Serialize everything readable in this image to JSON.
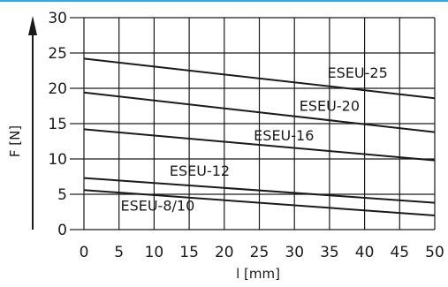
{
  "chart_data": {
    "type": "line",
    "xlabel": "l [mm]",
    "ylabel": "F [N]",
    "xlim": [
      0,
      50
    ],
    "ylim": [
      0,
      30
    ],
    "x_ticks": [
      0,
      5,
      10,
      15,
      20,
      25,
      30,
      35,
      40,
      45,
      50
    ],
    "y_ticks": [
      0,
      5,
      10,
      15,
      20,
      25,
      30
    ],
    "grid": true,
    "series": [
      {
        "name": "ESEU-25",
        "x": [
          0,
          50
        ],
        "values": [
          24.2,
          18.6
        ],
        "label_at": [
          39,
          21.5
        ]
      },
      {
        "name": "ESEU-20",
        "x": [
          0,
          50
        ],
        "values": [
          19.4,
          13.8
        ],
        "label_at": [
          35,
          16.8
        ]
      },
      {
        "name": "ESEU-16",
        "x": [
          0,
          50
        ],
        "values": [
          14.2,
          9.8
        ],
        "label_at": [
          28.5,
          12.6
        ]
      },
      {
        "name": "ESEU-12",
        "x": [
          0,
          50
        ],
        "values": [
          7.3,
          3.8
        ],
        "label_at": [
          16.5,
          7.6
        ]
      },
      {
        "name": "ESEU-8/10",
        "x": [
          0,
          50
        ],
        "values": [
          5.6,
          2.0
        ],
        "label_at": [
          10.5,
          2.7
        ]
      }
    ]
  }
}
